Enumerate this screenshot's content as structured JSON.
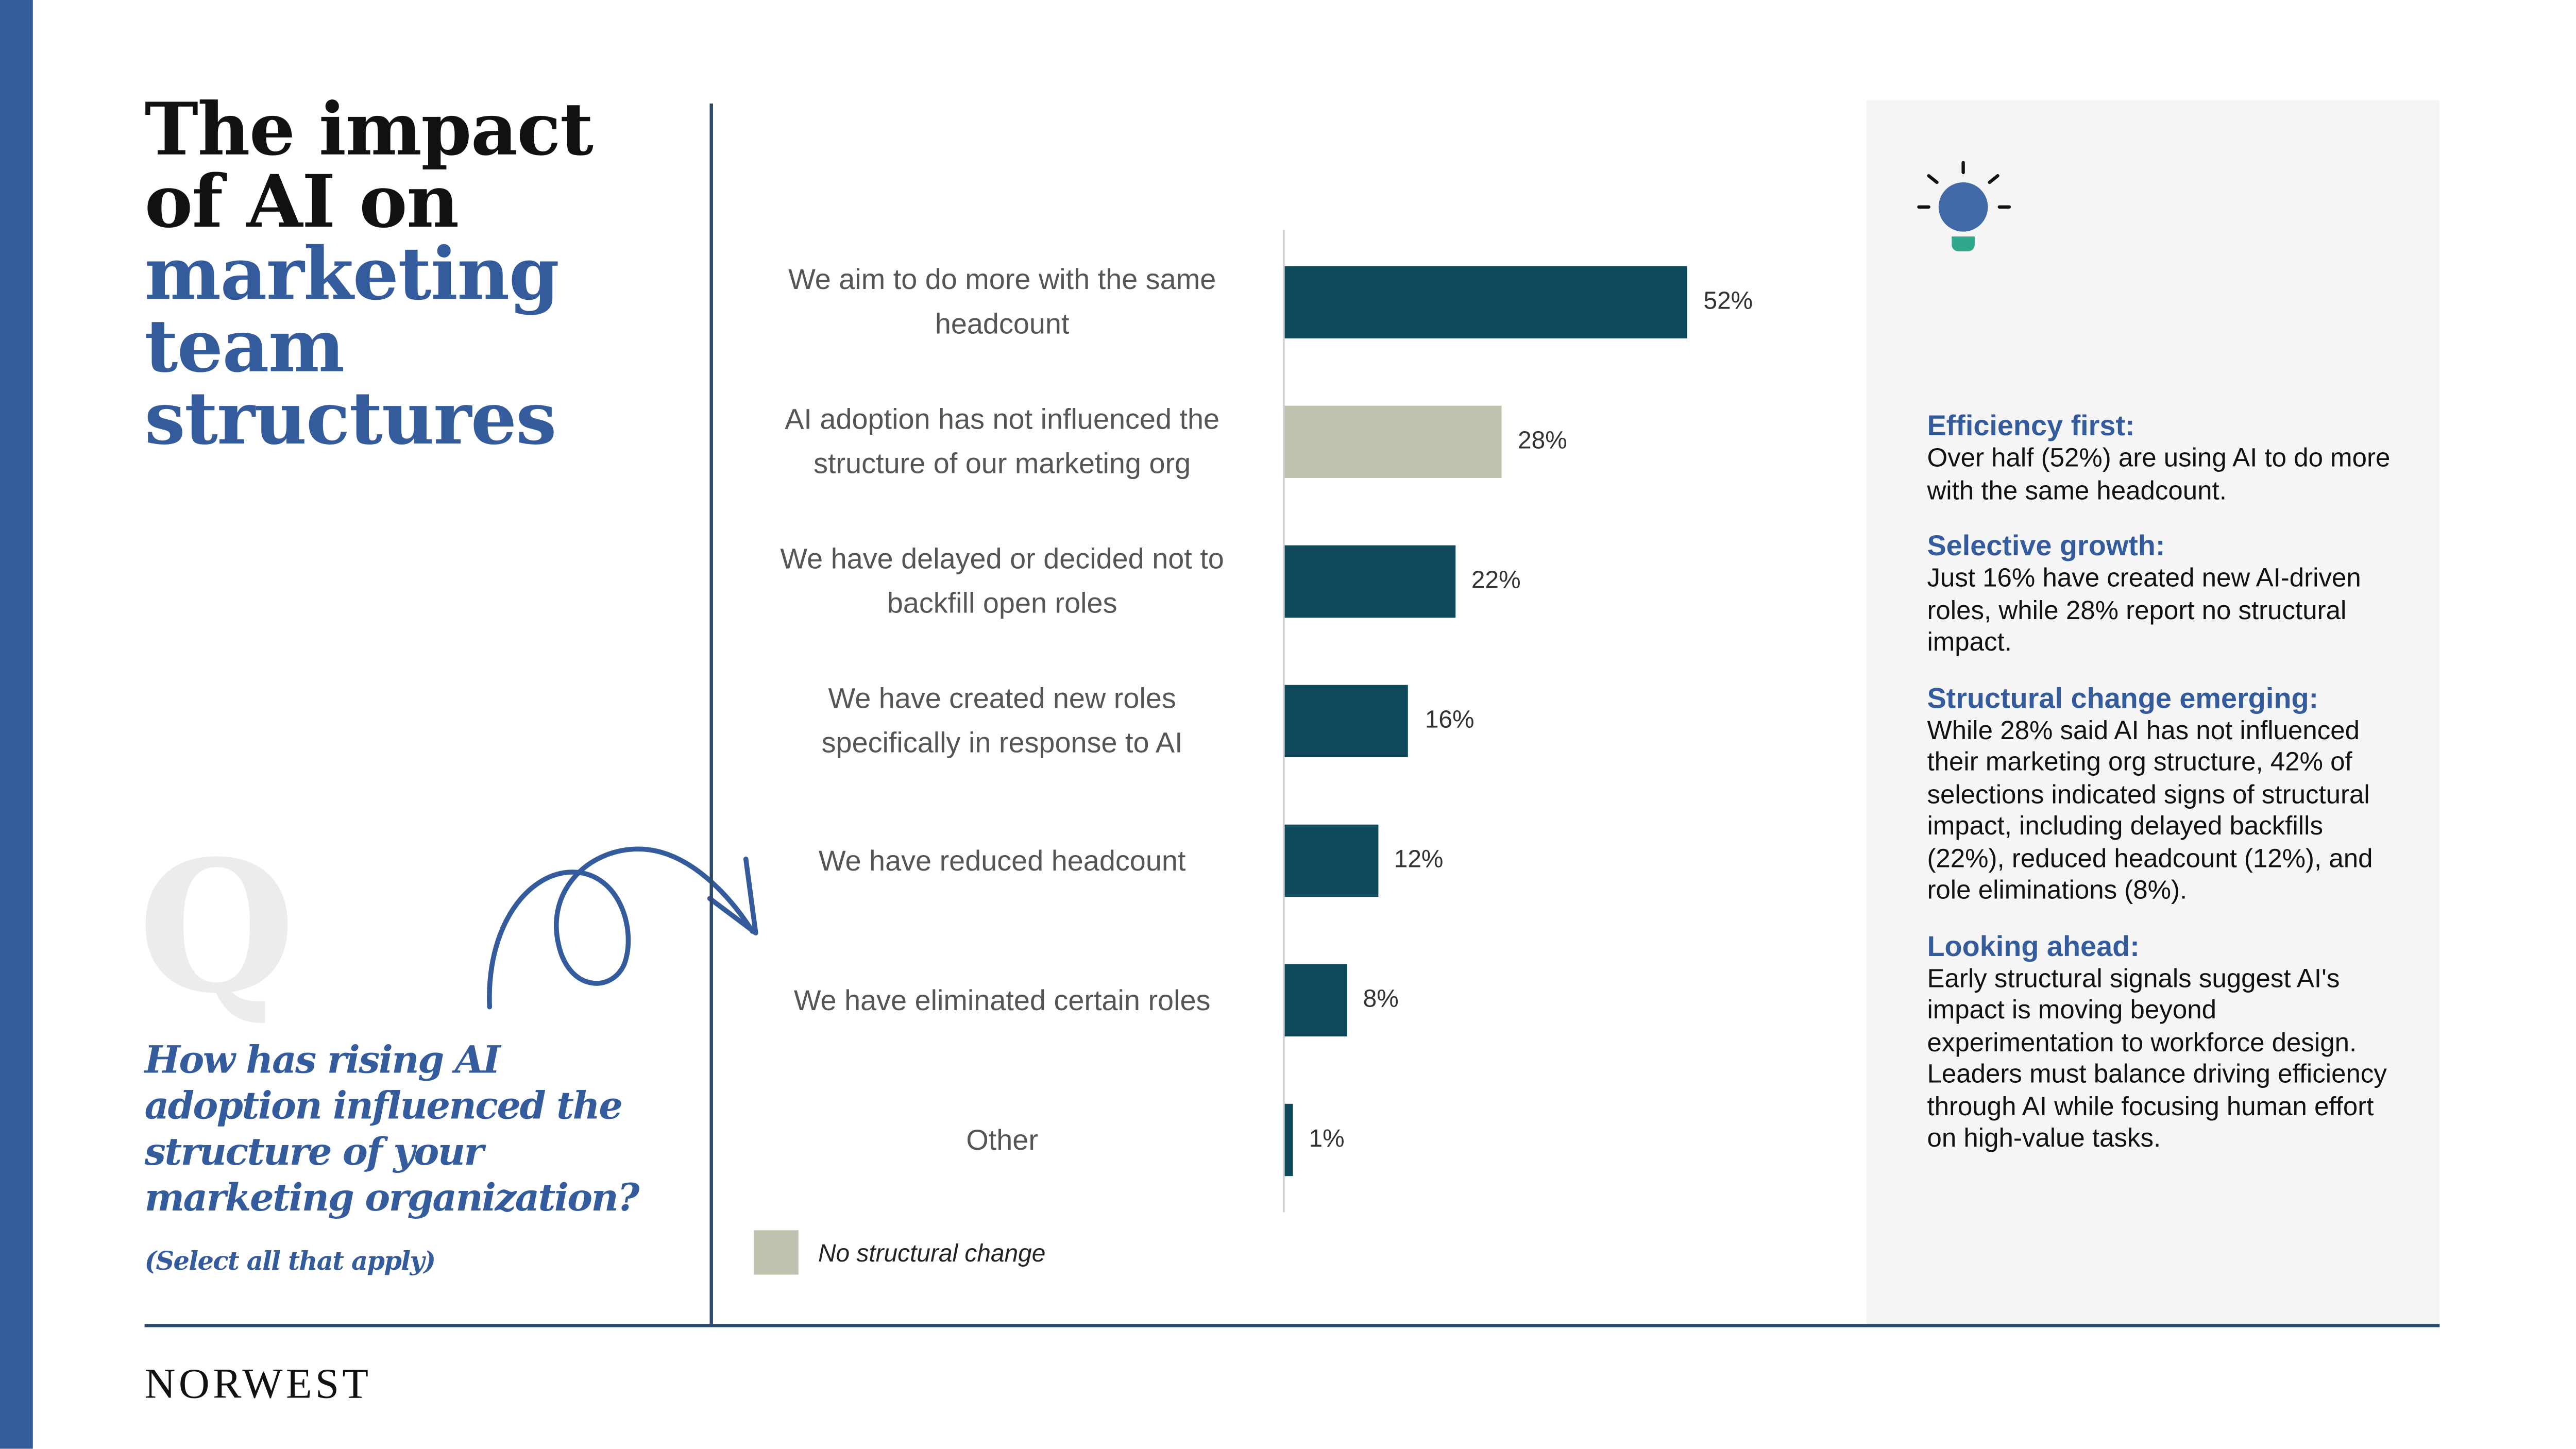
{
  "title": {
    "line1": "The impact",
    "line2": "of AI on",
    "line3": "marketing",
    "line4": "team",
    "line5": "structures"
  },
  "question": {
    "q_letter": "Q",
    "text": "How has rising AI adoption influenced the structure of your marketing organization?",
    "note": "(Select all that apply)"
  },
  "logo": "NORWEST",
  "chart_data": {
    "type": "bar",
    "orientation": "horizontal",
    "categories": [
      "We aim to do more with the same headcount",
      "AI adoption has not influenced the structure of our marketing org",
      "We have delayed or decided not to backfill open roles",
      "We have created new roles specifically in response to AI",
      "We have reduced headcount",
      "We have eliminated certain roles",
      "Other"
    ],
    "values": [
      52,
      28,
      22,
      16,
      12,
      8,
      1
    ],
    "value_labels": [
      "52%",
      "28%",
      "22%",
      "16%",
      "12%",
      "8%",
      "1%"
    ],
    "highlight_index": 1,
    "colors": {
      "default": "#0e4a5c",
      "highlight": "#bfc0ae"
    },
    "legend": {
      "label": "No structural change",
      "color": "#bfc0ae",
      "placement": "bottom-left"
    },
    "grid": false
  },
  "insights": [
    {
      "heading": "Efficiency first:",
      "body": "Over half (52%) are using AI to do more with the same headcount."
    },
    {
      "heading": "Selective growth:",
      "body": "Just 16% have created new AI-driven roles, while 28% report no structural impact."
    },
    {
      "heading": "Structural change emerging:",
      "body": "While 28% said AI has not influenced their marketing org structure, 42% of selections indicated signs of structural impact, including delayed backfills (22%), reduced headcount (12%), and role eliminations (8%)."
    },
    {
      "heading": "Looking ahead:",
      "body": "Early structural signals suggest AI's impact is moving beyond experimentation to workforce design. Leaders must balance driving efficiency through AI while focusing human effort on high-value tasks."
    }
  ],
  "icons": {
    "panel": "lightbulb-icon",
    "decor": "curly-arrow-icon"
  },
  "colors": {
    "brand_blue": "#345c9c",
    "bar_teal": "#0e4a5c",
    "panel_bg": "#f5f5f5"
  }
}
